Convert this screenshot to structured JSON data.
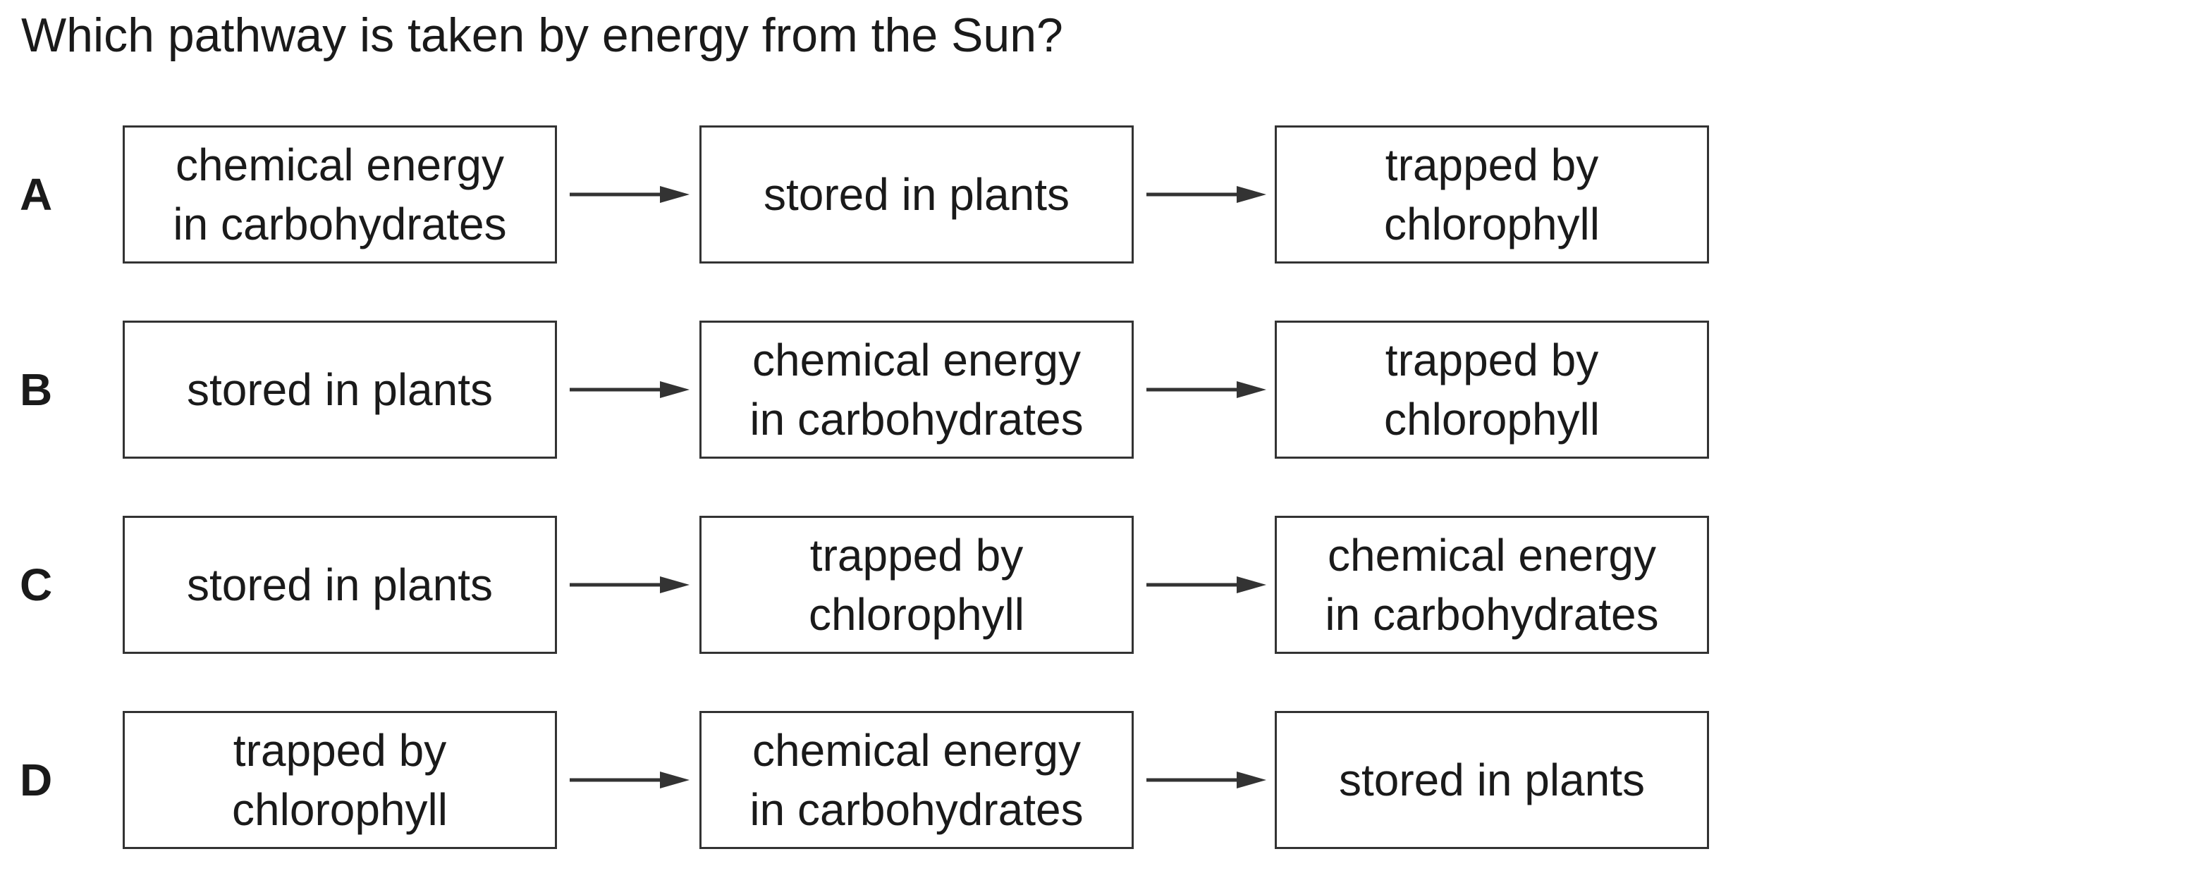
{
  "question": "Which pathway is taken by energy from the Sun?",
  "options": [
    {
      "label": "A",
      "steps": [
        "chemical energy\nin carbohydrates",
        "stored in plants",
        "trapped by\nchlorophyll"
      ]
    },
    {
      "label": "B",
      "steps": [
        "stored in plants",
        "chemical energy\nin carbohydrates",
        "trapped by\nchlorophyll"
      ]
    },
    {
      "label": "C",
      "steps": [
        "stored in plants",
        "trapped by\nchlorophyll",
        "chemical energy\nin carbohydrates"
      ]
    },
    {
      "label": "D",
      "steps": [
        "trapped by\nchlorophyll",
        "chemical energy\nin carbohydrates",
        "stored in plants"
      ]
    }
  ],
  "colors": {
    "text": "#1a1a1a",
    "box_border": "#333333",
    "arrow": "#333333"
  }
}
